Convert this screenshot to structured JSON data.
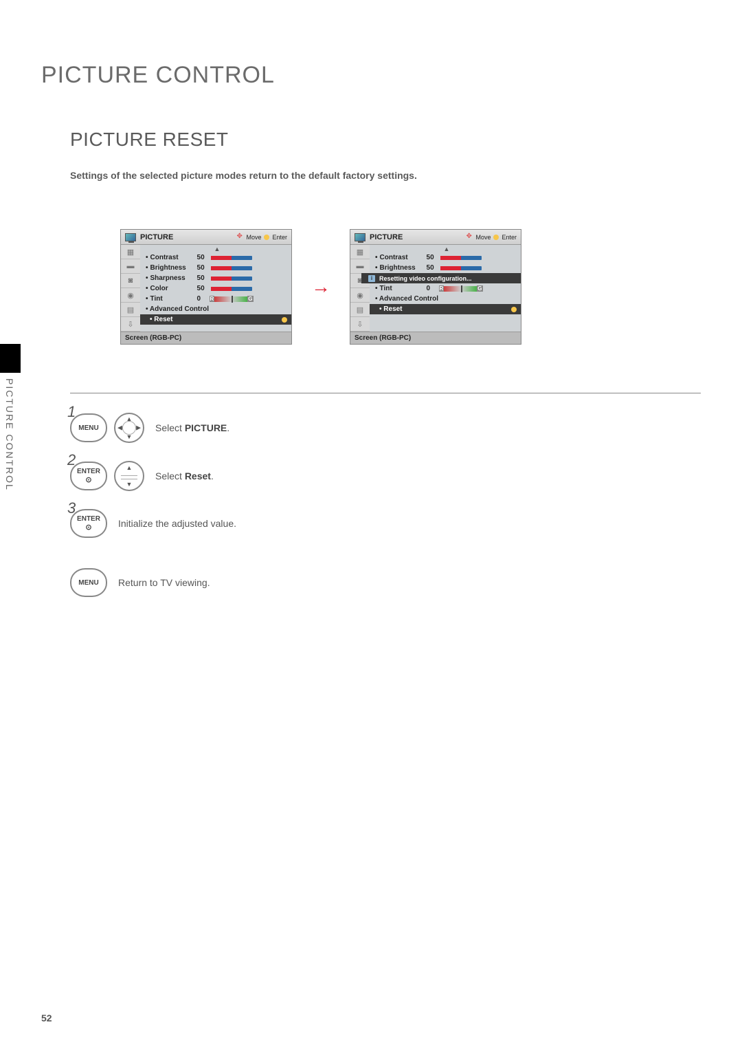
{
  "page": {
    "title": "PICTURE CONTROL",
    "section": "PICTURE RESET",
    "description": "Settings of the selected picture modes return to the default factory settings.",
    "side_tab": "PICTURE CONTROL",
    "page_number": "52"
  },
  "osd": {
    "header_title": "PICTURE",
    "move_label": "Move",
    "enter_label": "Enter",
    "footer": "Screen (RGB-PC)",
    "reset_label": "• Reset",
    "adv_label": "• Advanced Control",
    "left": {
      "rows": [
        {
          "label": "Contrast",
          "value": "50",
          "fill_pct": 50,
          "type": "bar"
        },
        {
          "label": "Brightness",
          "value": "50",
          "fill_pct": 50,
          "type": "bar"
        },
        {
          "label": "Sharpness",
          "value": "50",
          "fill_pct": 50,
          "type": "bar"
        },
        {
          "label": "Color",
          "value": "50",
          "fill_pct": 50,
          "type": "bar"
        },
        {
          "label": "Tint",
          "value": "0",
          "type": "tint"
        }
      ]
    },
    "right": {
      "rows": [
        {
          "label": "Contrast",
          "value": "50",
          "fill_pct": 50,
          "type": "bar"
        },
        {
          "label": "Brightness",
          "value": "50",
          "fill_pct": 50,
          "type": "bar"
        }
      ],
      "popup": "Resetting video configuration...",
      "tint": {
        "label": "Tint",
        "value": "0"
      }
    },
    "colors": {
      "bar_bg": "#2b6aa8",
      "bar_fill": "#d23",
      "highlight_bg": "#3a3a3a",
      "sel_dot": "#f7c64a"
    }
  },
  "steps": {
    "s1": {
      "num": "1",
      "btn": "MENU",
      "text_a": "Select ",
      "text_b": "PICTURE",
      "text_c": "."
    },
    "s2": {
      "num": "2",
      "btn": "ENTER",
      "text_a": "Select ",
      "text_b": "Reset",
      "text_c": "."
    },
    "s3": {
      "num": "3",
      "btn": "ENTER",
      "text": "Initialize the adjusted value."
    },
    "s4": {
      "btn": "MENU",
      "text": "Return to TV viewing."
    }
  },
  "tint_labels": {
    "r": "R",
    "g": "G"
  }
}
